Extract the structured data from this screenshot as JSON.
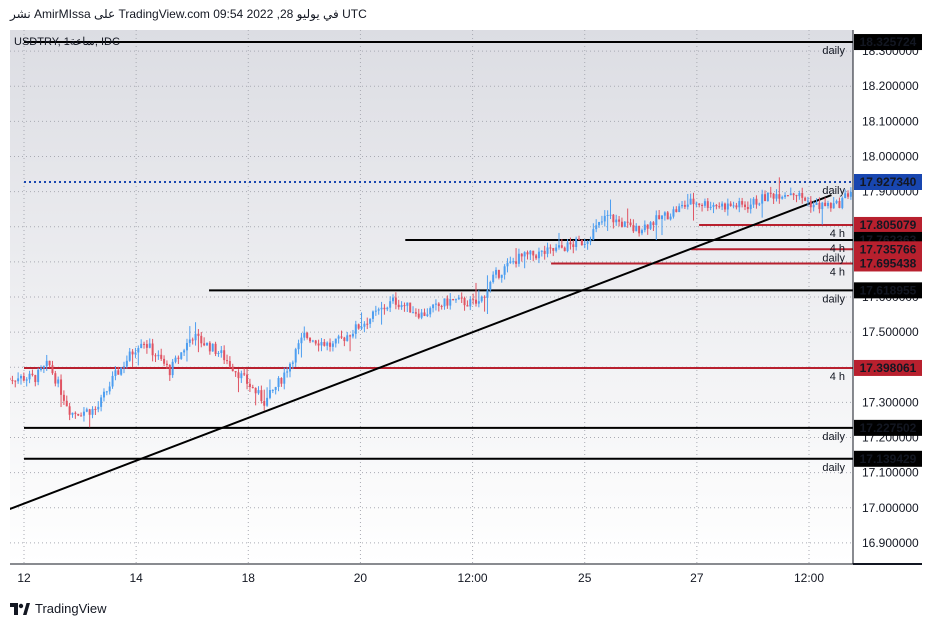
{
  "header": {
    "publisher_line": "نشر AmirMIssa على TradingView.com في يوليو 28, 2022 09:54 UTC"
  },
  "symbol_label": "USDTRY, 1ساعة, IDC",
  "footer": {
    "brand": "TradingView"
  },
  "colors": {
    "up": "#4d9ef0",
    "down": "#e05463",
    "black": "#000000",
    "red_level": "#b8202e",
    "blue_level": "#1846b0"
  },
  "chart_data": {
    "type": "candlestick",
    "title": "",
    "xlabel": "",
    "ylabel": "",
    "ylim": [
      16.84,
      18.36
    ],
    "x_ticks": [
      "12",
      "14",
      "18",
      "20",
      "12:00",
      "25",
      "27",
      "12:00"
    ],
    "y_ticks": [
      "18.300000",
      "18.200000",
      "18.100000",
      "18.000000",
      "17.900000",
      "17.800000",
      "17.700000",
      "17.600000",
      "17.500000",
      "17.400000",
      "17.300000",
      "17.200000",
      "17.100000",
      "17.000000",
      "16.900000"
    ],
    "price_levels": [
      {
        "price": "18.325724",
        "value": 18.325724,
        "tf": "daily",
        "color": "black",
        "start_tick": 0
      },
      {
        "price": "17.927340",
        "value": 17.92734,
        "tf": "daily",
        "color": "blue",
        "dotted": true,
        "start_tick": 0
      },
      {
        "price": "17.805079",
        "value": 17.805079,
        "tf": "4 h",
        "color": "red",
        "start_tick": 6.02
      },
      {
        "price": "17.762363",
        "value": 17.762363,
        "tf": "4 h",
        "color": "black",
        "start_tick": 3.4
      },
      {
        "price": "17.735766",
        "value": 17.735766,
        "tf": "daily",
        "color": "red",
        "start_tick": 5.95
      },
      {
        "price": "17.695438",
        "value": 17.695438,
        "tf": "4 h",
        "color": "red",
        "start_tick": 4.7
      },
      {
        "price": "17.618955",
        "value": 17.618955,
        "tf": "daily",
        "color": "black",
        "start_tick": 1.65
      },
      {
        "price": "17.398061",
        "value": 17.398061,
        "tf": "4 h",
        "color": "red",
        "start_tick": 0
      },
      {
        "price": "17.227502",
        "value": 17.227502,
        "tf": "daily",
        "color": "black",
        "start_tick": 0
      },
      {
        "price": "17.139429",
        "value": 17.139429,
        "tf": "daily",
        "color": "black",
        "start_tick": 0
      }
    ],
    "trendline": {
      "from": {
        "x_tick": -0.18,
        "price": 16.99
      },
      "to": {
        "x_tick": 7.2,
        "price": 17.89
      }
    },
    "price_path": [
      {
        "x_tick": -0.18,
        "price": 17.37
      },
      {
        "x_tick": 0.1,
        "price": 17.37
      },
      {
        "x_tick": 0.22,
        "price": 17.41
      },
      {
        "x_tick": 0.42,
        "price": 17.27
      },
      {
        "x_tick": 0.65,
        "price": 17.28
      },
      {
        "x_tick": 0.8,
        "price": 17.37
      },
      {
        "x_tick": 1.05,
        "price": 17.48
      },
      {
        "x_tick": 1.3,
        "price": 17.39
      },
      {
        "x_tick": 1.5,
        "price": 17.49
      },
      {
        "x_tick": 1.75,
        "price": 17.44
      },
      {
        "x_tick": 1.95,
        "price": 17.37
      },
      {
        "x_tick": 2.15,
        "price": 17.3
      },
      {
        "x_tick": 2.3,
        "price": 17.37
      },
      {
        "x_tick": 2.5,
        "price": 17.49
      },
      {
        "x_tick": 2.75,
        "price": 17.46
      },
      {
        "x_tick": 3.0,
        "price": 17.52
      },
      {
        "x_tick": 3.3,
        "price": 17.59
      },
      {
        "x_tick": 3.55,
        "price": 17.55
      },
      {
        "x_tick": 3.8,
        "price": 17.59
      },
      {
        "x_tick": 4.05,
        "price": 17.58
      },
      {
        "x_tick": 4.2,
        "price": 17.66
      },
      {
        "x_tick": 4.4,
        "price": 17.71
      },
      {
        "x_tick": 4.7,
        "price": 17.73
      },
      {
        "x_tick": 5.0,
        "price": 17.76
      },
      {
        "x_tick": 5.2,
        "price": 17.83
      },
      {
        "x_tick": 5.45,
        "price": 17.79
      },
      {
        "x_tick": 5.65,
        "price": 17.82
      },
      {
        "x_tick": 5.95,
        "price": 17.87
      },
      {
        "x_tick": 6.25,
        "price": 17.86
      },
      {
        "x_tick": 6.45,
        "price": 17.86
      },
      {
        "x_tick": 6.65,
        "price": 17.89
      },
      {
        "x_tick": 6.85,
        "price": 17.9
      },
      {
        "x_tick": 7.05,
        "price": 17.86
      },
      {
        "x_tick": 7.25,
        "price": 17.86
      },
      {
        "x_tick": 7.45,
        "price": 17.93
      }
    ]
  }
}
